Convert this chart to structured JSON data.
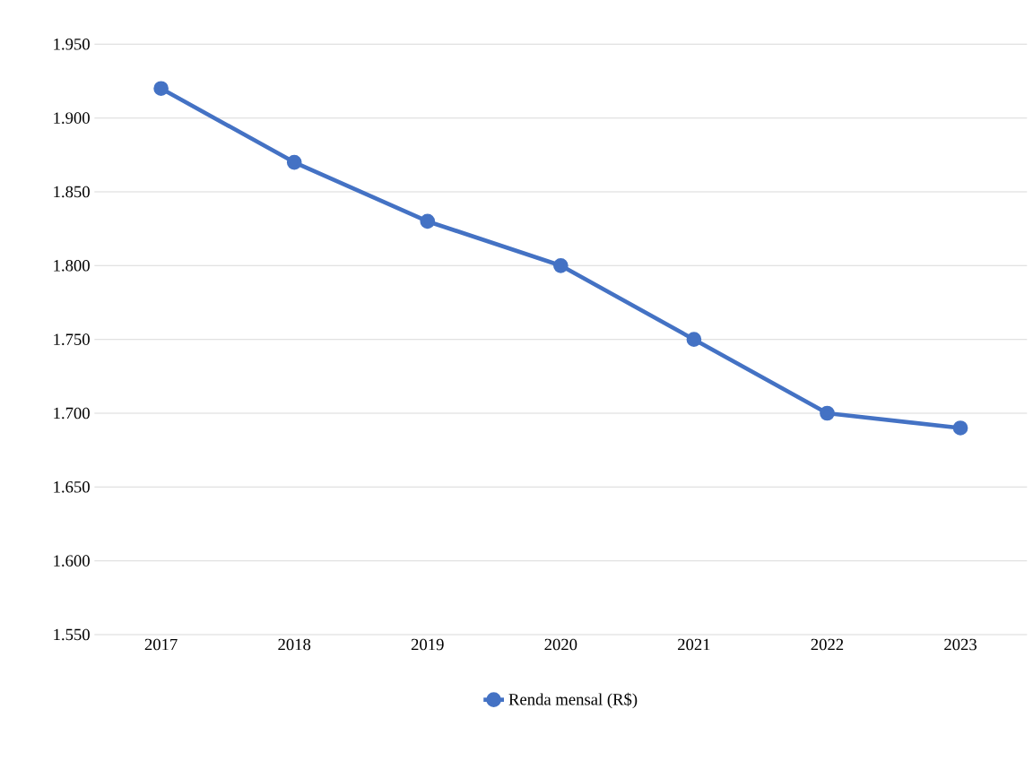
{
  "chart_data": {
    "type": "line",
    "categories": [
      "2017",
      "2018",
      "2019",
      "2020",
      "2021",
      "2022",
      "2023"
    ],
    "series": [
      {
        "name": "Renda mensal (R$)",
        "color": "#4472c4",
        "values": [
          1920,
          1870,
          1830,
          1800,
          1750,
          1700,
          1690
        ]
      }
    ],
    "ylim": [
      1550,
      1950
    ],
    "yticks": [
      {
        "value": 1550,
        "label": "1.550"
      },
      {
        "value": 1600,
        "label": "1.600"
      },
      {
        "value": 1650,
        "label": "1.650"
      },
      {
        "value": 1700,
        "label": "1.700"
      },
      {
        "value": 1750,
        "label": "1.750"
      },
      {
        "value": 1800,
        "label": "1.800"
      },
      {
        "value": 1850,
        "label": "1.850"
      },
      {
        "value": 1900,
        "label": "1.900"
      },
      {
        "value": 1950,
        "label": "1.950"
      }
    ],
    "grid": "y",
    "legend": "bottom",
    "marker": "circle",
    "line_style": "solid"
  }
}
